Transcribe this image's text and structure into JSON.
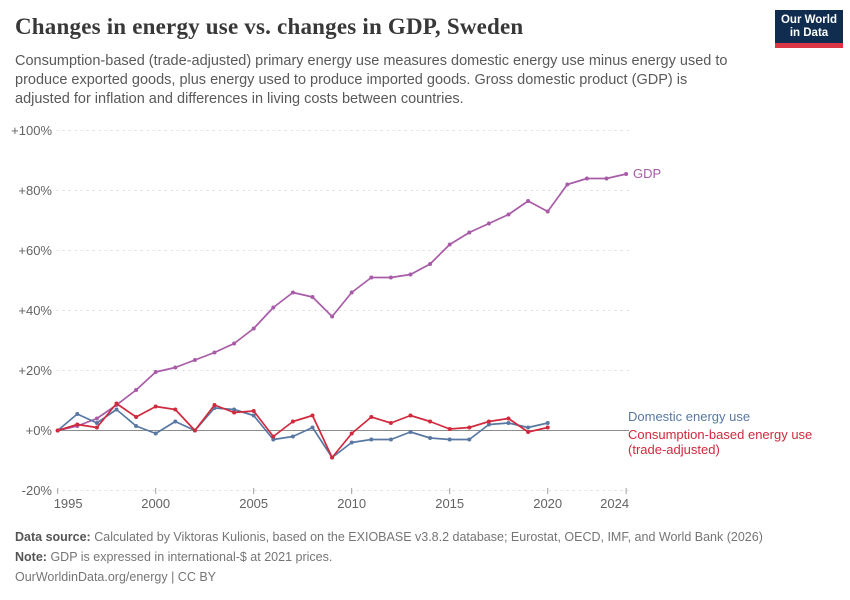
{
  "header": {
    "title": "Changes in energy use vs. changes in GDP, Sweden",
    "logo": {
      "line1": "Our World",
      "line2": "in Data"
    }
  },
  "subtitle": "Consumption-based (trade-adjusted) primary energy use measures domestic energy use minus energy used to produce exported goods, plus energy used to produce imported goods. Gross domestic product (GDP) is adjusted for inflation and differences in living costs between countries.",
  "chart_data": {
    "type": "line",
    "title": "Changes in energy use vs. changes in GDP, Sweden",
    "xlabel": "",
    "ylabel": "",
    "xlim": [
      1995,
      2024
    ],
    "ylim": [
      -20,
      100
    ],
    "grid": true,
    "legend_position": "right-end-labels",
    "yticks": [
      {
        "value": 100,
        "label": "+100%"
      },
      {
        "value": 80,
        "label": "+80%"
      },
      {
        "value": 60,
        "label": "+60%"
      },
      {
        "value": 40,
        "label": "+40%"
      },
      {
        "value": 20,
        "label": "+20%"
      },
      {
        "value": 0,
        "label": "+0%"
      },
      {
        "value": -20,
        "label": "-20%"
      }
    ],
    "xticks": [
      1995,
      2000,
      2005,
      2010,
      2015,
      2020,
      2024
    ],
    "series": [
      {
        "name": "GDP",
        "label_lines": [
          "GDP"
        ],
        "color": "#a85ca8",
        "x": [
          1995,
          1996,
          1997,
          1998,
          1999,
          2000,
          2001,
          2002,
          2003,
          2004,
          2005,
          2006,
          2007,
          2008,
          2009,
          2010,
          2011,
          2012,
          2013,
          2014,
          2015,
          2016,
          2017,
          2018,
          2019,
          2020,
          2021,
          2022,
          2023,
          2024
        ],
        "values": [
          0,
          1.5,
          4,
          8.5,
          13.5,
          19.5,
          21,
          23.5,
          26,
          29,
          34,
          41,
          46,
          44.5,
          38,
          46,
          51,
          51,
          52,
          55.5,
          62,
          66,
          69,
          72,
          76.5,
          73,
          82,
          84,
          84,
          85.5
        ]
      },
      {
        "name": "Domestic energy use",
        "label_lines": [
          "Domestic energy use"
        ],
        "color": "#5878a3",
        "x": [
          1995,
          1996,
          1997,
          1998,
          1999,
          2000,
          2001,
          2002,
          2003,
          2004,
          2005,
          2006,
          2007,
          2008,
          2009,
          2010,
          2011,
          2012,
          2013,
          2014,
          2015,
          2016,
          2017,
          2018,
          2019,
          2020
        ],
        "values": [
          0,
          5.5,
          2.5,
          7,
          1.5,
          -1,
          3,
          0,
          7.5,
          7,
          5,
          -3,
          -2,
          1,
          -9,
          -4,
          -3,
          -3,
          -0.5,
          -2.5,
          -3,
          -3,
          2,
          2.5,
          1,
          2.5
        ]
      },
      {
        "name": "Consumption-based energy use (trade-adjusted)",
        "label_lines": [
          "Consumption-based energy use",
          "(trade-adjusted)"
        ],
        "color": "#d1293d",
        "x": [
          1995,
          1996,
          1997,
          1998,
          1999,
          2000,
          2001,
          2002,
          2003,
          2004,
          2005,
          2006,
          2007,
          2008,
          2009,
          2010,
          2011,
          2012,
          2013,
          2014,
          2015,
          2016,
          2017,
          2018,
          2019,
          2020
        ],
        "values": [
          0,
          2,
          1,
          9,
          4.5,
          8,
          7,
          0,
          8.5,
          6,
          6.5,
          -2,
          3,
          5,
          -9,
          -1,
          4.5,
          2.5,
          5,
          3,
          0.5,
          1,
          3,
          4,
          -0.5,
          1
        ]
      }
    ]
  },
  "footer": {
    "source_label": "Data source:",
    "source_text": "Calculated by Viktoras Kulionis, based on the EXIOBASE v3.8.2 database; Eurostat, OECD, IMF, and World Bank (2026)",
    "note_label": "Note:",
    "note_text": "GDP is expressed in international-$ at 2021 prices.",
    "license": "OurWorldinData.org/energy | CC BY"
  }
}
